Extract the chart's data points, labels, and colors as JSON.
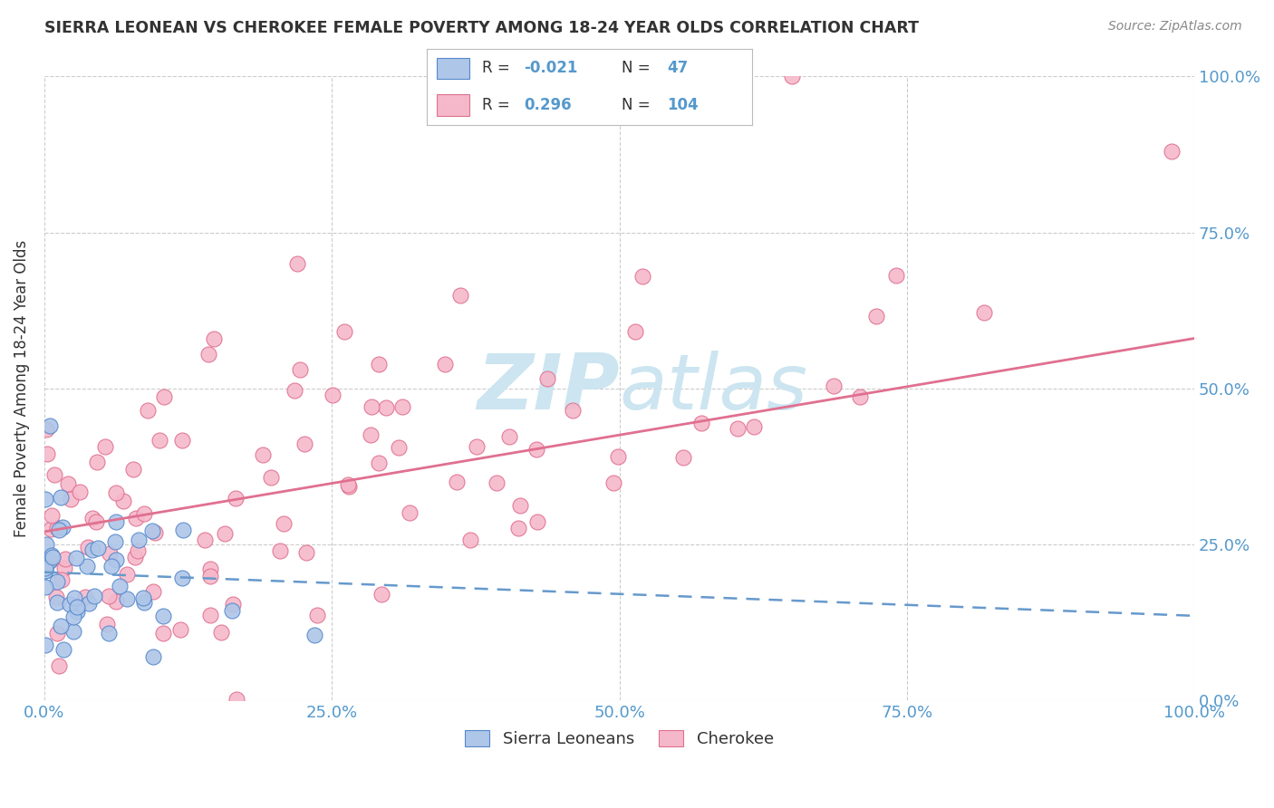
{
  "title": "SIERRA LEONEAN VS CHEROKEE FEMALE POVERTY AMONG 18-24 YEAR OLDS CORRELATION CHART",
  "source": "Source: ZipAtlas.com",
  "ylabel": "Female Poverty Among 18-24 Year Olds",
  "xlim": [
    0,
    1.0
  ],
  "ylim": [
    0,
    1.0
  ],
  "legend_R_sierra": "-0.021",
  "legend_N_sierra": "47",
  "legend_R_cherokee": "0.296",
  "legend_N_cherokee": "104",
  "sierra_color": "#aec6e8",
  "cherokee_color": "#f5b8ca",
  "sierra_edge": "#5588cc",
  "cherokee_edge": "#e07090",
  "sierra_line_color": "#6699cc",
  "cherokee_line_color": "#e07090",
  "watermark_color": "#cce5f0",
  "title_color": "#333333",
  "tick_color": "#5599cc",
  "grid_color": "#cccccc",
  "cherokee_line_y0": 0.27,
  "cherokee_line_y1": 0.58,
  "sierra_line_y0": 0.205,
  "sierra_line_y1": 0.135
}
